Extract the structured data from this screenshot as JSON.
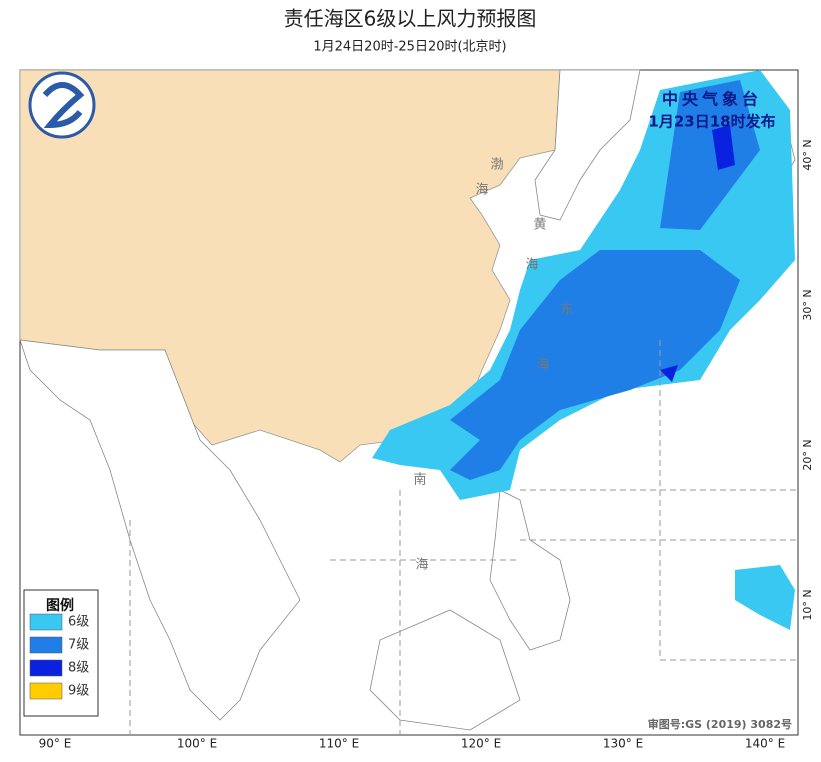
{
  "header": {
    "title": "责任海区6级以上风力预报图",
    "subtitle": "1月24日20时-25日20时(北京时)"
  },
  "issuer": {
    "name": "中央气象台",
    "time": "1月23日18时发布"
  },
  "legend": {
    "title": "图例",
    "items": [
      {
        "label": "6级",
        "color": "#38c8f2"
      },
      {
        "label": "7级",
        "color": "#1f7fe6"
      },
      {
        "label": "8级",
        "color": "#0a22e0"
      },
      {
        "label": "9级",
        "color": "#ffcc00"
      }
    ]
  },
  "axes": {
    "x": [
      "90° E",
      "100° E",
      "110° E",
      "120° E",
      "130° E",
      "140° E"
    ],
    "y": [
      "10° N",
      "20° N",
      "30° N",
      "40° N"
    ]
  },
  "seas": {
    "bohai": [
      "渤",
      "海"
    ],
    "yellow": [
      "黄",
      "海"
    ],
    "east": [
      "东",
      "海"
    ],
    "south": [
      "南",
      "海"
    ]
  },
  "map_number": "审图号:GS (2019) 3082号"
}
